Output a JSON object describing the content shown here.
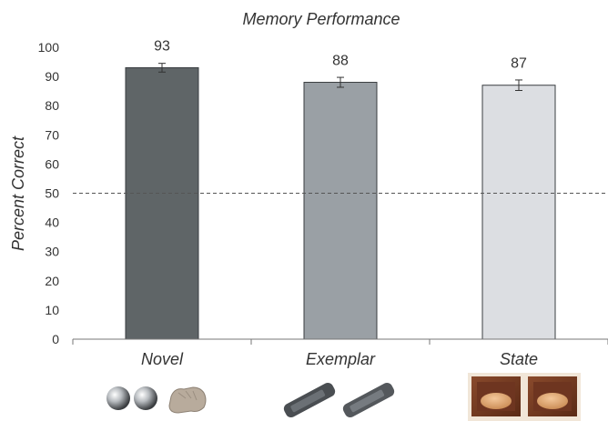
{
  "chart_data": {
    "type": "bar",
    "title": "Memory Performance",
    "ylabel": "Percent Correct",
    "xlabel": "",
    "ylim": [
      0,
      100
    ],
    "yticks": [
      0,
      10,
      20,
      30,
      40,
      50,
      60,
      70,
      80,
      90,
      100
    ],
    "categories": [
      "Novel",
      "Exemplar",
      "State"
    ],
    "values": [
      93,
      88,
      87
    ],
    "value_labels": [
      "93",
      "88",
      "87"
    ],
    "error": [
      1.5,
      1.7,
      1.8
    ],
    "reference_line": 50,
    "grid": false,
    "colors": [
      "#5f6567",
      "#9aa0a5",
      "#dcdee2"
    ],
    "icons": [
      "metal-balls-and-glove-photo",
      "two-remote-controls-photo",
      "box-with-bread-photo"
    ]
  }
}
